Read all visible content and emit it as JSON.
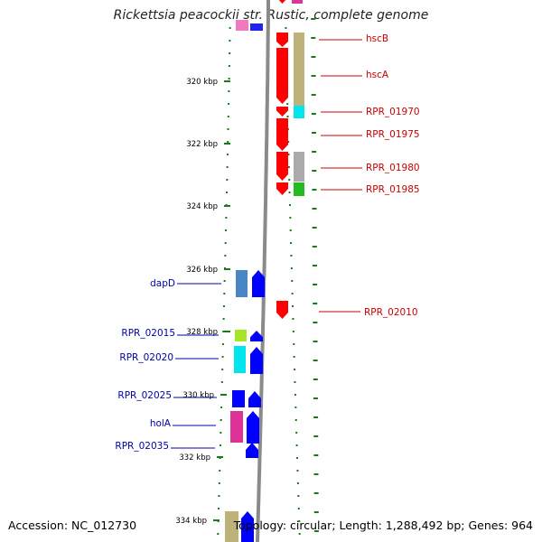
{
  "title": "Rickettsia peacockii str. Rustic, complete genome",
  "accession": "Accession: NC_012730",
  "summary": "Topology: circular; Length: 1,288,492 bp; Genes: 964",
  "colors": {
    "forward_label": "#cc0000",
    "reverse_label": "#0000aa",
    "forward_feature": "#ff0000",
    "reverse_feature": "#0000ff",
    "tick": "#1a7a1a",
    "backbone": "#8a8a8a"
  },
  "ruler": [
    {
      "label": "320 kbp"
    },
    {
      "label": "322 kbp"
    },
    {
      "label": "324 kbp"
    },
    {
      "label": "326 kbp"
    },
    {
      "label": "328 kbp"
    },
    {
      "label": "330 kbp"
    },
    {
      "label": "332 kbp"
    },
    {
      "label": "334 kbp"
    }
  ],
  "forward_genes": [
    {
      "name": "hscB",
      "cog_color": "#dd3399"
    },
    {
      "name": "hscA",
      "cog_color": "#bdb27a"
    },
    {
      "name": "RPR_01970",
      "cog_color": "#00e5ee"
    },
    {
      "name": "RPR_01975",
      "cog_color": ""
    },
    {
      "name": "RPR_01980",
      "cog_color": "#aaaaaa"
    },
    {
      "name": "RPR_01985",
      "cog_color": "#22bb22"
    },
    {
      "name": "RPR_02010",
      "cog_color": ""
    }
  ],
  "reverse_genes": [
    {
      "name": "dapD",
      "cog_color": "#4a86c5"
    },
    {
      "name": "RPR_02015",
      "cog_color": "#a6e628"
    },
    {
      "name": "RPR_02020",
      "cog_color": "#00e5ee"
    },
    {
      "name": "RPR_02025",
      "cog_color": "#0000ff"
    },
    {
      "name": "holA",
      "cog_color": "#dd3399"
    },
    {
      "name": "RPR_02035",
      "cog_color": ""
    }
  ]
}
